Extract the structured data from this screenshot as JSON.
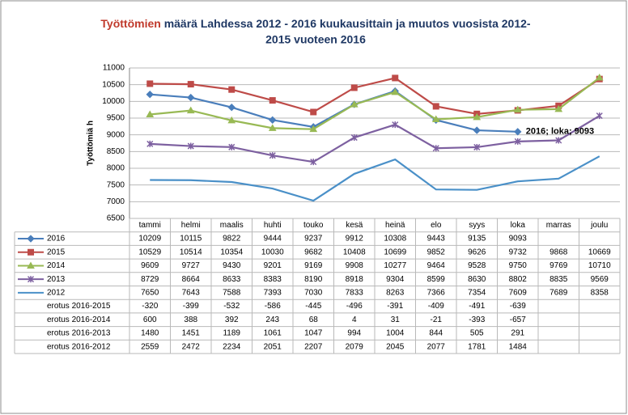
{
  "chart_data": {
    "type": "line",
    "title": [
      "Työttömien määrä Lahdessa 2012 - 2016 kuukausittain ja muutos vuosista 2012-",
      "2015 vuoteen 2016"
    ],
    "ylabel": "Työttömiä h",
    "annotation": "2016; loka; 9093",
    "categories": [
      "tammi",
      "helmi",
      "maalis",
      "huhti",
      "touko",
      "kesä",
      "heinä",
      "elo",
      "syys",
      "loka",
      "marras",
      "joulu"
    ],
    "ylim": [
      6500,
      11000
    ],
    "yticks": [
      6500,
      7000,
      7500,
      8000,
      8500,
      9000,
      9500,
      10000,
      10500,
      11000
    ],
    "series": [
      {
        "name": "2016",
        "color": "#4a7ebb",
        "marker": "diamond",
        "values": [
          10209,
          10115,
          9822,
          9444,
          9237,
          9912,
          10308,
          9443,
          9135,
          9093,
          null,
          null
        ]
      },
      {
        "name": "2015",
        "color": "#be4b48",
        "marker": "square",
        "values": [
          10529,
          10514,
          10354,
          10030,
          9682,
          10408,
          10699,
          9852,
          9626,
          9732,
          9868,
          10669
        ]
      },
      {
        "name": "2014",
        "color": "#98b954",
        "marker": "triangle",
        "values": [
          9609,
          9727,
          9430,
          9201,
          9169,
          9908,
          10277,
          9464,
          9528,
          9750,
          9769,
          10710
        ]
      },
      {
        "name": "2013",
        "color": "#7d60a0",
        "marker": "x",
        "values": [
          8729,
          8664,
          8633,
          8383,
          8190,
          8918,
          9304,
          8599,
          8630,
          8802,
          8835,
          9569
        ]
      },
      {
        "name": "2012",
        "color": "#4a90c8",
        "marker": "none",
        "values": [
          7650,
          7643,
          7588,
          7393,
          7030,
          7833,
          8263,
          7366,
          7354,
          7609,
          7689,
          8358
        ]
      }
    ],
    "table_rows": [
      {
        "name": "erotus 2016-2015",
        "values": [
          -320,
          -399,
          -532,
          -586,
          -445,
          -496,
          -391,
          -409,
          -491,
          -639,
          null,
          null
        ]
      },
      {
        "name": "erotus 2016-2014",
        "values": [
          600,
          388,
          392,
          243,
          68,
          4,
          31,
          -21,
          -393,
          -657,
          null,
          null
        ]
      },
      {
        "name": "erotus 2016-2013",
        "values": [
          1480,
          1451,
          1189,
          1061,
          1047,
          994,
          1004,
          844,
          505,
          291,
          null,
          null
        ]
      },
      {
        "name": "erotus 2016-2012",
        "values": [
          2559,
          2472,
          2234,
          2051,
          2207,
          2079,
          2045,
          2077,
          1781,
          1484,
          null,
          null
        ]
      }
    ]
  }
}
